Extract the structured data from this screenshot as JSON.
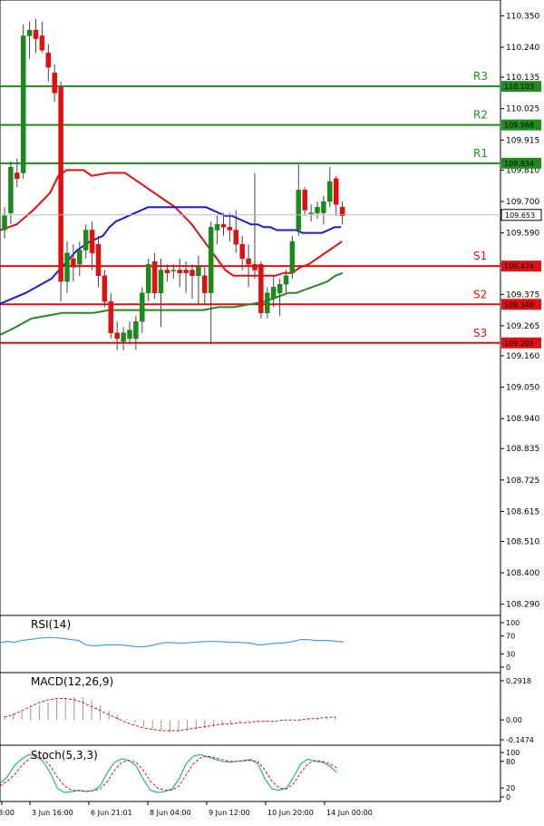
{
  "chart_data": [
    {
      "type": "candlestick",
      "y_ticks": [
        "110.350",
        "110.240",
        "110.135",
        "110.025",
        "109.915",
        "109.810",
        "109.700",
        "109.590",
        "109.480",
        "109.375",
        "109.265",
        "109.160",
        "109.050",
        "108.940",
        "108.835",
        "108.725",
        "108.615",
        "108.510",
        "108.400",
        "108.290"
      ],
      "ylim": [
        108.27,
        110.38
      ],
      "x_tick_labels": [
        "8:00",
        "3 Jun 16:00",
        "6 Jun 21:01",
        "8 Jun 04:00",
        "9 Jun 12:00",
        "10 Jun 20:00",
        "14 Jun 00:00"
      ],
      "current_price": "109.653",
      "levels": [
        {
          "name": "R3",
          "value": "110.103",
          "color": "#1e8c1e"
        },
        {
          "name": "R2",
          "value": "109.968",
          "color": "#1e8c1e"
        },
        {
          "name": "R1",
          "value": "109.834",
          "color": "#1e8c1e"
        },
        {
          "name": "S1",
          "value": "109.474",
          "color": "#e01010"
        },
        {
          "name": "S2",
          "value": "109.340",
          "color": "#e01010"
        },
        {
          "name": "S3",
          "value": "109.205",
          "color": "#e01010"
        }
      ],
      "candles": [
        {
          "o": 109.6,
          "h": 109.68,
          "l": 109.57,
          "c": 109.65
        },
        {
          "o": 109.66,
          "h": 109.84,
          "l": 109.62,
          "c": 109.82
        },
        {
          "o": 109.8,
          "h": 109.85,
          "l": 109.75,
          "c": 109.78
        },
        {
          "o": 109.8,
          "h": 110.32,
          "l": 109.78,
          "c": 110.28
        },
        {
          "o": 110.28,
          "h": 110.33,
          "l": 110.2,
          "c": 110.3
        },
        {
          "o": 110.3,
          "h": 110.34,
          "l": 110.22,
          "c": 110.27
        },
        {
          "o": 110.28,
          "h": 110.33,
          "l": 110.22,
          "c": 110.23
        },
        {
          "o": 110.22,
          "h": 110.25,
          "l": 110.12,
          "c": 110.17
        },
        {
          "o": 110.15,
          "h": 110.18,
          "l": 110.05,
          "c": 110.08
        },
        {
          "o": 110.1,
          "h": 110.12,
          "l": 109.35,
          "c": 109.42
        },
        {
          "o": 109.42,
          "h": 109.56,
          "l": 109.38,
          "c": 109.52
        },
        {
          "o": 109.5,
          "h": 109.55,
          "l": 109.42,
          "c": 109.47
        },
        {
          "o": 109.48,
          "h": 109.56,
          "l": 109.44,
          "c": 109.53
        },
        {
          "o": 109.53,
          "h": 109.62,
          "l": 109.5,
          "c": 109.6
        },
        {
          "o": 109.6,
          "h": 109.63,
          "l": 109.46,
          "c": 109.52
        },
        {
          "o": 109.55,
          "h": 109.58,
          "l": 109.4,
          "c": 109.44
        },
        {
          "o": 109.44,
          "h": 109.46,
          "l": 109.33,
          "c": 109.35
        },
        {
          "o": 109.35,
          "h": 109.38,
          "l": 109.22,
          "c": 109.24
        },
        {
          "o": 109.24,
          "h": 109.28,
          "l": 109.18,
          "c": 109.22
        },
        {
          "o": 109.21,
          "h": 109.26,
          "l": 109.18,
          "c": 109.24
        },
        {
          "o": 109.22,
          "h": 109.28,
          "l": 109.2,
          "c": 109.25
        },
        {
          "o": 109.22,
          "h": 109.3,
          "l": 109.18,
          "c": 109.28
        },
        {
          "o": 109.28,
          "h": 109.4,
          "l": 109.24,
          "c": 109.38
        },
        {
          "o": 109.38,
          "h": 109.5,
          "l": 109.35,
          "c": 109.48
        },
        {
          "o": 109.49,
          "h": 109.52,
          "l": 109.36,
          "c": 109.38
        },
        {
          "o": 109.38,
          "h": 109.5,
          "l": 109.26,
          "c": 109.46
        },
        {
          "o": 109.46,
          "h": 109.48,
          "l": 109.42,
          "c": 109.45
        },
        {
          "o": 109.46,
          "h": 109.48,
          "l": 109.43,
          "c": 109.46
        },
        {
          "o": 109.46,
          "h": 109.5,
          "l": 109.4,
          "c": 109.45
        },
        {
          "o": 109.46,
          "h": 109.49,
          "l": 109.38,
          "c": 109.45
        },
        {
          "o": 109.46,
          "h": 109.48,
          "l": 109.36,
          "c": 109.44
        },
        {
          "o": 109.44,
          "h": 109.51,
          "l": 109.34,
          "c": 109.47
        },
        {
          "o": 109.44,
          "h": 109.47,
          "l": 109.34,
          "c": 109.38
        },
        {
          "o": 109.38,
          "h": 109.63,
          "l": 109.2,
          "c": 109.61
        },
        {
          "o": 109.6,
          "h": 109.65,
          "l": 109.55,
          "c": 109.62
        },
        {
          "o": 109.62,
          "h": 109.66,
          "l": 109.58,
          "c": 109.61
        },
        {
          "o": 109.61,
          "h": 109.66,
          "l": 109.56,
          "c": 109.6
        },
        {
          "o": 109.6,
          "h": 109.67,
          "l": 109.52,
          "c": 109.55
        },
        {
          "o": 109.55,
          "h": 109.58,
          "l": 109.46,
          "c": 109.5
        },
        {
          "o": 109.5,
          "h": 109.55,
          "l": 109.4,
          "c": 109.48
        },
        {
          "o": 109.48,
          "h": 109.8,
          "l": 109.43,
          "c": 109.46
        },
        {
          "o": 109.48,
          "h": 109.49,
          "l": 109.29,
          "c": 109.31
        },
        {
          "o": 109.31,
          "h": 109.4,
          "l": 109.29,
          "c": 109.38
        },
        {
          "o": 109.36,
          "h": 109.44,
          "l": 109.33,
          "c": 109.4
        },
        {
          "o": 109.38,
          "h": 109.43,
          "l": 109.3,
          "c": 109.41
        },
        {
          "o": 109.41,
          "h": 109.46,
          "l": 109.38,
          "c": 109.44
        },
        {
          "o": 109.45,
          "h": 109.58,
          "l": 109.43,
          "c": 109.56
        },
        {
          "o": 109.6,
          "h": 109.83,
          "l": 109.58,
          "c": 109.74
        },
        {
          "o": 109.74,
          "h": 109.75,
          "l": 109.65,
          "c": 109.67
        },
        {
          "o": 109.66,
          "h": 109.69,
          "l": 109.63,
          "c": 109.66
        },
        {
          "o": 109.66,
          "h": 109.7,
          "l": 109.64,
          "c": 109.68
        },
        {
          "o": 109.66,
          "h": 109.72,
          "l": 109.62,
          "c": 109.7
        },
        {
          "o": 109.7,
          "h": 109.82,
          "l": 109.68,
          "c": 109.77
        },
        {
          "o": 109.78,
          "h": 109.79,
          "l": 109.65,
          "c": 109.69
        },
        {
          "o": 109.68,
          "h": 109.7,
          "l": 109.62,
          "c": 109.65
        }
      ],
      "ma_blue": [
        109.34,
        109.38,
        109.43,
        109.48,
        109.53,
        109.56,
        109.58,
        109.61,
        109.63,
        109.64,
        109.65,
        109.66,
        109.67,
        109.68,
        109.68,
        109.68,
        109.68,
        109.68,
        109.68,
        109.68,
        109.68,
        109.68,
        109.68,
        109.67,
        109.66,
        109.65,
        109.65,
        109.64,
        109.63,
        109.62,
        109.62,
        109.61,
        109.61,
        109.6,
        109.6,
        109.6,
        109.6,
        109.59,
        109.59,
        109.59,
        109.59,
        109.6,
        109.61,
        109.61
      ],
      "ma_red": [
        109.6,
        109.62,
        109.67,
        109.73,
        109.79,
        109.81,
        109.81,
        109.79,
        109.8,
        109.8,
        109.78,
        109.76,
        109.74,
        109.72,
        109.7,
        109.68,
        109.65,
        109.62,
        109.58,
        109.54,
        109.5,
        109.46,
        109.44,
        109.44,
        109.44,
        109.44,
        109.44,
        109.44,
        109.45,
        109.45,
        109.47,
        109.48,
        109.5,
        109.52,
        109.54,
        109.56
      ],
      "ma_green": [
        109.23,
        109.26,
        109.29,
        109.3,
        109.31,
        109.31,
        109.31,
        109.32,
        109.32,
        109.32,
        109.32,
        109.32,
        109.32,
        109.32,
        109.33,
        109.33,
        109.34,
        109.35,
        109.36,
        109.37,
        109.38,
        109.38,
        109.39,
        109.4,
        109.41,
        109.42,
        109.44,
        109.45
      ],
      "ma_blue_x": [
        -2,
        40,
        80,
        100,
        120,
        140,
        160,
        170,
        180,
        190,
        200,
        210,
        220,
        230,
        240,
        250,
        260,
        270,
        280,
        290,
        300,
        310,
        320,
        330,
        340,
        350,
        360,
        370,
        380,
        390,
        400,
        410,
        420,
        430,
        440,
        450,
        460,
        470,
        480,
        490,
        500,
        510,
        520,
        530
      ],
      "ma_red_x": [
        0,
        20,
        40,
        60,
        70,
        80,
        100,
        110,
        130,
        150,
        160,
        170,
        180,
        190,
        200,
        210,
        220,
        230,
        240,
        250,
        260,
        270,
        280,
        290,
        300,
        310,
        320,
        330,
        340,
        350,
        360,
        370,
        380,
        390,
        400,
        410
      ],
      "ma_green_x": [
        -2,
        20,
        40,
        60,
        80,
        100,
        120,
        140,
        160,
        180,
        200,
        220,
        240,
        260,
        280,
        300,
        320,
        340,
        350,
        360,
        370,
        380,
        390,
        400,
        410,
        420,
        430,
        440
      ]
    },
    {
      "type": "line",
      "title": "RSI(14)",
      "y_ticks": [
        "100",
        "70",
        "30",
        "0"
      ],
      "ylim": [
        0,
        100
      ],
      "values": [
        55,
        58,
        56,
        60,
        62,
        64,
        66,
        67,
        66,
        64,
        62,
        60,
        50,
        48,
        49,
        50,
        50,
        50,
        48,
        46,
        46,
        48,
        52,
        55,
        55,
        54,
        54,
        56,
        57,
        58,
        58,
        57,
        56,
        56,
        55,
        54,
        50,
        51,
        53,
        54,
        55,
        58,
        62,
        62,
        60,
        60,
        60,
        58,
        57
      ]
    },
    {
      "type": "bar",
      "title": "MACD(12,26,9)",
      "y_ticks": [
        "0.2918",
        "0.00",
        "-0.1474"
      ],
      "ylim": [
        -0.1474,
        0.2918
      ],
      "histogram": [
        0.03,
        0.05,
        0.07,
        0.09,
        0.11,
        0.13,
        0.15,
        0.16,
        0.17,
        0.17,
        0.15,
        0.11,
        0.07,
        0.04,
        0.01,
        -0.02,
        -0.05,
        -0.07,
        -0.08,
        -0.09,
        -0.09,
        -0.08,
        -0.07,
        -0.06,
        -0.05,
        -0.04,
        -0.03,
        -0.02,
        -0.01,
        -0.01,
        -0.01,
        0.0,
        0.0,
        0.0,
        0.01,
        0.01,
        0.02,
        0.02,
        0.03
      ],
      "signal": [
        0.02,
        0.04,
        0.07,
        0.1,
        0.13,
        0.15,
        0.16,
        0.16,
        0.15,
        0.13,
        0.1,
        0.07,
        0.04,
        0.01,
        -0.02,
        -0.04,
        -0.06,
        -0.07,
        -0.08,
        -0.08,
        -0.08,
        -0.07,
        -0.06,
        -0.05,
        -0.04,
        -0.03,
        -0.03,
        -0.02,
        -0.02,
        -0.01,
        -0.01,
        -0.01,
        0.0,
        0.0,
        0.0,
        0.01,
        0.01,
        0.02,
        0.02
      ]
    },
    {
      "type": "line",
      "title": "Stoch(5,3,3)",
      "y_ticks": [
        "100",
        "80",
        "20",
        "0"
      ],
      "ylim": [
        0,
        100
      ],
      "k": [
        30,
        45,
        70,
        85,
        95,
        92,
        80,
        55,
        20,
        10,
        12,
        15,
        12,
        14,
        25,
        55,
        78,
        86,
        82,
        70,
        40,
        15,
        10,
        12,
        18,
        40,
        75,
        92,
        95,
        90,
        85,
        80,
        78,
        80,
        82,
        84,
        75,
        40,
        18,
        15,
        20,
        45,
        75,
        85,
        80,
        78,
        70,
        55
      ],
      "d": [
        25,
        35,
        50,
        70,
        85,
        92,
        88,
        70,
        45,
        25,
        15,
        14,
        13,
        14,
        18,
        35,
        60,
        78,
        82,
        78,
        60,
        35,
        20,
        15,
        15,
        25,
        50,
        75,
        88,
        92,
        88,
        84,
        80,
        80,
        81,
        82,
        80,
        60,
        35,
        20,
        18,
        30,
        55,
        75,
        82,
        80,
        75,
        65
      ]
    }
  ]
}
